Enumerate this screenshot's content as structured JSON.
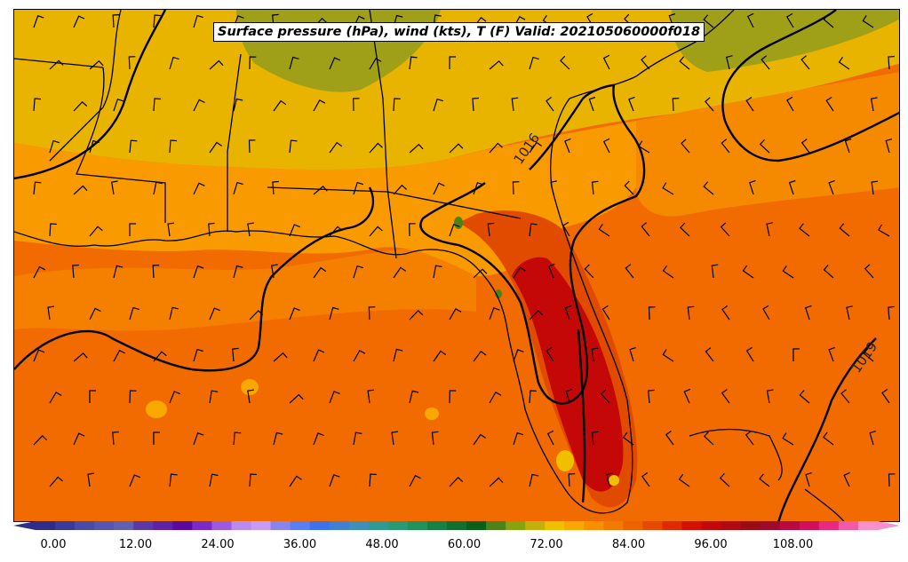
{
  "title": "Surface pressure (hPa), wind (kts), T (F) Valid: 202105060000f018",
  "isobar_labels": [
    "1016",
    "1019"
  ],
  "colorbar": {
    "tick_labels": [
      "0.00",
      "12.00",
      "24.00",
      "36.00",
      "48.00",
      "60.00",
      "72.00",
      "84.00",
      "96.00",
      "108.00"
    ],
    "tick_values": [
      0,
      12,
      24,
      36,
      48,
      60,
      72,
      84,
      96,
      108
    ],
    "range": [
      -6,
      120
    ],
    "colors": [
      "#2e2e8a",
      "#3a3a9c",
      "#4a4aa8",
      "#5656b0",
      "#6060b4",
      "#5a3aa8",
      "#5e22a6",
      "#5b0aa0",
      "#7a2acb",
      "#9c5ae0",
      "#b98af0",
      "#c79cf7",
      "#8a84f2",
      "#5a7ef5",
      "#3f70f0",
      "#3f7fd6",
      "#3f8fba",
      "#2f9a92",
      "#289a74",
      "#20925a",
      "#178045",
      "#0f7030",
      "#0a6018",
      "#4c8218",
      "#86a412",
      "#c4b00a",
      "#f0c000",
      "#f8a800",
      "#f89000",
      "#f27a00",
      "#ee6200",
      "#e64a00",
      "#de2a00",
      "#d41000",
      "#c40808",
      "#b00a10",
      "#9c0a14",
      "#a00a2a",
      "#b80a40",
      "#d0105a",
      "#e62a80",
      "#f25aa8",
      "#f890cc"
    ]
  },
  "fill_colors": {
    "ocean": "#f26b00",
    "warm_land": "#f99a00",
    "cool_north": "#e8b400",
    "cold_high": "#a0a018",
    "hot_land": "#e14b00",
    "hottest": "#c40808"
  }
}
